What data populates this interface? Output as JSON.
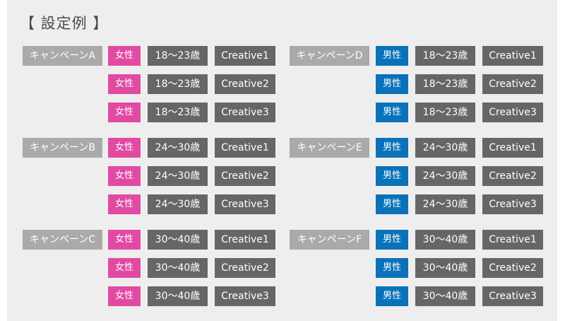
{
  "title": "【 設定例 】",
  "campaigns": [
    {
      "label": "キャンペーンA",
      "rows": [
        {
          "gender": "女性",
          "age": "18〜23歳",
          "creative": "Creative1"
        },
        {
          "gender": "女性",
          "age": "18〜23歳",
          "creative": "Creative2"
        },
        {
          "gender": "女性",
          "age": "18〜23歳",
          "creative": "Creative3"
        }
      ]
    },
    {
      "label": "キャンペーンB",
      "rows": [
        {
          "gender": "女性",
          "age": "24〜30歳",
          "creative": "Creative1"
        },
        {
          "gender": "女性",
          "age": "24〜30歳",
          "creative": "Creative2"
        },
        {
          "gender": "女性",
          "age": "24〜30歳",
          "creative": "Creative3"
        }
      ]
    },
    {
      "label": "キャンペーンC",
      "rows": [
        {
          "gender": "女性",
          "age": "30〜40歳",
          "creative": "Creative1"
        },
        {
          "gender": "女性",
          "age": "30〜40歳",
          "creative": "Creative2"
        },
        {
          "gender": "女性",
          "age": "30〜40歳",
          "creative": "Creative3"
        }
      ]
    },
    {
      "label": "キャンペーンD",
      "rows": [
        {
          "gender": "男性",
          "age": "18〜23歳",
          "creative": "Creative1"
        },
        {
          "gender": "男性",
          "age": "18〜23歳",
          "creative": "Creative2"
        },
        {
          "gender": "男性",
          "age": "18〜23歳",
          "creative": "Creative3"
        }
      ]
    },
    {
      "label": "キャンペーンE",
      "rows": [
        {
          "gender": "男性",
          "age": "24〜30歳",
          "creative": "Creative1"
        },
        {
          "gender": "男性",
          "age": "24〜30歳",
          "creative": "Creative2"
        },
        {
          "gender": "男性",
          "age": "24〜30歳",
          "creative": "Creative3"
        }
      ]
    },
    {
      "label": "キャンペーンF",
      "rows": [
        {
          "gender": "男性",
          "age": "30〜40歳",
          "creative": "Creative1"
        },
        {
          "gender": "男性",
          "age": "30〜40歳",
          "creative": "Creative2"
        },
        {
          "gender": "男性",
          "age": "30〜40歳",
          "creative": "Creative3"
        }
      ]
    }
  ],
  "colors": {
    "female": "#e14aa3",
    "male": "#0a72b9",
    "campaign": "#aaaaaa",
    "cell": "#666666",
    "panel": "#eeeeee"
  }
}
